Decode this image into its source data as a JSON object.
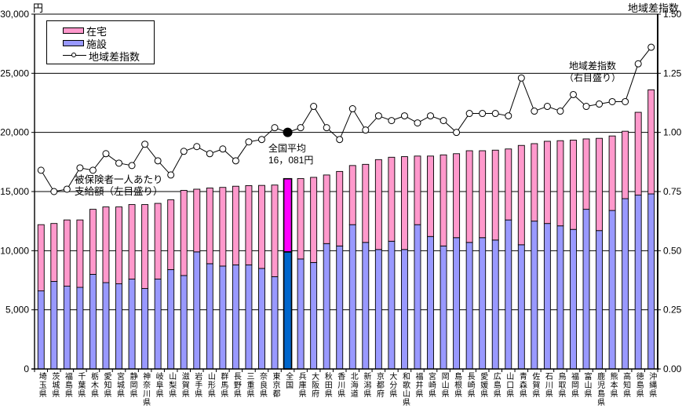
{
  "header": {
    "left_axis_unit": "円",
    "right_axis_title": "地域差指数"
  },
  "legend": {
    "home_label": "在宅",
    "facility_label": "施設",
    "index_label": "地域差指数"
  },
  "annotations": {
    "right_axis_note_line1": "地域差指数",
    "right_axis_note_line2": "（右目盛り）",
    "national_avg_line1": "全国平均",
    "national_avg_line2": "16，081円",
    "left_axis_note_line1": "被保険者一人あたり",
    "left_axis_note_line2": "支給額（左目盛り）"
  },
  "chart_data": {
    "type": "bar",
    "subtype": "stacked-bar-with-line",
    "title": "",
    "xlabel": "",
    "categories": [
      "埼玉県",
      "茨城県",
      "福島県",
      "千葉県",
      "栃木県",
      "愛知県",
      "宮城県",
      "静岡県",
      "神奈川県",
      "岐阜県",
      "山梨県",
      "滋賀県",
      "岩手県",
      "山形県",
      "群馬県",
      "長野県",
      "三重県",
      "奈良県",
      "東京都",
      "全国",
      "兵庫県",
      "大阪府",
      "秋田県",
      "香川県",
      "北海道",
      "新潟県",
      "京都府",
      "大分県",
      "和歌山県",
      "福井県",
      "宮崎県",
      "岡山県",
      "島根県",
      "長崎県",
      "愛媛県",
      "広島県",
      "山口県",
      "青森県",
      "佐賀県",
      "石川県",
      "鳥取県",
      "福岡県",
      "富山県",
      "鹿児島県",
      "熊本県",
      "高知県",
      "徳島県",
      "沖縄県"
    ],
    "series": [
      {
        "name": "施設",
        "type": "bar",
        "stack": "bottom",
        "axis": "left",
        "values": [
          6600,
          7400,
          7000,
          6900,
          8000,
          7300,
          7200,
          7600,
          6800,
          7600,
          8400,
          7900,
          9900,
          8900,
          8700,
          8800,
          8800,
          8500,
          7800,
          9900,
          9300,
          9000,
          10600,
          10400,
          12200,
          10700,
          10100,
          10800,
          10100,
          12200,
          11200,
          10400,
          11100,
          10700,
          11100,
          10900,
          12600,
          10500,
          12500,
          12300,
          12100,
          11800,
          13500,
          11700,
          13400,
          14400,
          14700,
          14800
        ]
      },
      {
        "name": "在宅",
        "type": "bar",
        "stack": "top",
        "axis": "left",
        "values": [
          5600,
          4900,
          5600,
          5700,
          5500,
          6400,
          6500,
          6300,
          7100,
          6400,
          5900,
          7200,
          5300,
          6400,
          6650,
          6650,
          6700,
          7020,
          7750,
          6181,
          6800,
          7200,
          5800,
          6300,
          5000,
          6600,
          7600,
          7100,
          7850,
          5800,
          6800,
          7700,
          7100,
          7750,
          7350,
          7600,
          6000,
          8400,
          6550,
          6950,
          7200,
          7550,
          5950,
          7800,
          6300,
          5700,
          7000,
          8800
        ]
      },
      {
        "name": "地域差指数",
        "type": "line",
        "axis": "right",
        "values": [
          0.84,
          0.75,
          0.76,
          0.85,
          0.84,
          0.91,
          0.87,
          0.86,
          0.95,
          0.88,
          0.82,
          0.92,
          0.94,
          0.91,
          0.93,
          0.88,
          0.96,
          0.97,
          1.02,
          1.0,
          1.02,
          1.11,
          1.02,
          0.97,
          1.1,
          1.01,
          1.07,
          1.05,
          1.07,
          1.04,
          1.07,
          1.05,
          1.0,
          1.08,
          1.08,
          1.08,
          1.07,
          1.23,
          1.09,
          1.11,
          1.09,
          1.16,
          1.11,
          1.12,
          1.13,
          1.13,
          1.29,
          1.36
        ]
      }
    ],
    "highlight_category": "全国",
    "national_average_value": 16081,
    "y_left": {
      "unit": "円",
      "min": 0,
      "max": 30000,
      "tick_values": [
        0,
        5000,
        10000,
        15000,
        20000,
        25000,
        30000
      ],
      "tick_labels": [
        "0",
        "5,000",
        "10,000",
        "15,000",
        "20,000",
        "25,000",
        "30,000"
      ]
    },
    "y_right": {
      "title": "地域差指数",
      "min": 0,
      "max": 1.5,
      "tick_values": [
        0,
        0.25,
        0.5,
        0.75,
        1.0,
        1.25,
        1.5
      ],
      "tick_labels": [
        "0.00",
        "0.25",
        "0.50",
        "0.75",
        "1.00",
        "1.25",
        "1.50"
      ]
    },
    "grid": true,
    "legend_position": "top-left-inside",
    "colors": {
      "home": "#FF99CC",
      "facility": "#9999FF",
      "national_home": "#FF00FF",
      "national_facility": "#0066CC",
      "line": "#000000",
      "marker_fill": "#FFFFFF",
      "national_marker": "#000000",
      "grid": "#000000"
    }
  }
}
